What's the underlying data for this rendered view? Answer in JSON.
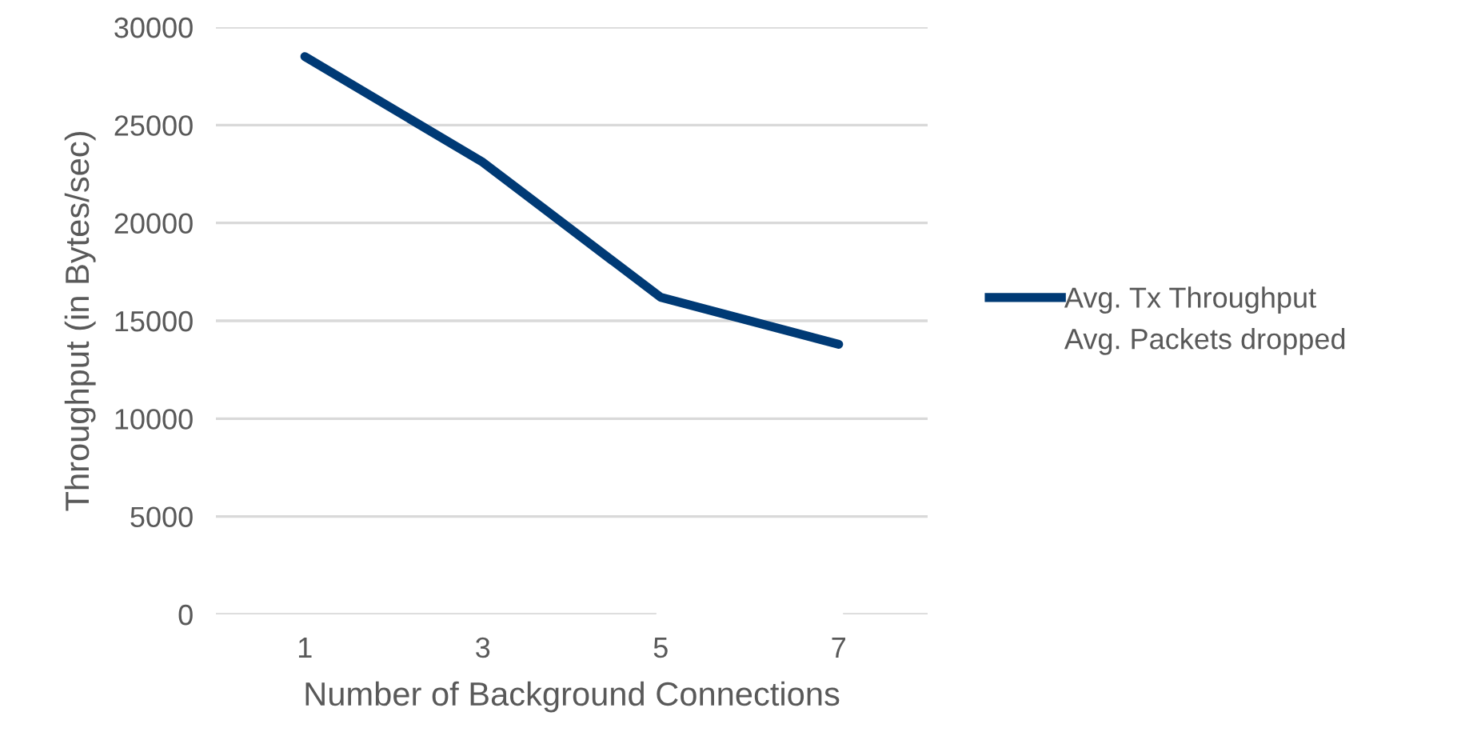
{
  "chart_data": {
    "type": "line",
    "xlabel": "Number of Background Connections",
    "ylabel": "Throughput (in Bytes/sec)",
    "categories": [
      "1",
      "3",
      "5",
      "7"
    ],
    "series": [
      {
        "name": "Avg. Tx Throughput",
        "color": "#003a75",
        "values": [
          28500,
          23100,
          16200,
          13800
        ]
      },
      {
        "name": "Avg. Packets dropped",
        "color": "#ffffff",
        "values": [
          null,
          null,
          0,
          0
        ]
      }
    ],
    "ylim": [
      0,
      30000
    ],
    "yticks": [
      0,
      5000,
      10000,
      15000,
      20000,
      25000,
      30000
    ],
    "grid": "y",
    "legend": "right",
    "marker": "none",
    "line_style": "solid"
  }
}
